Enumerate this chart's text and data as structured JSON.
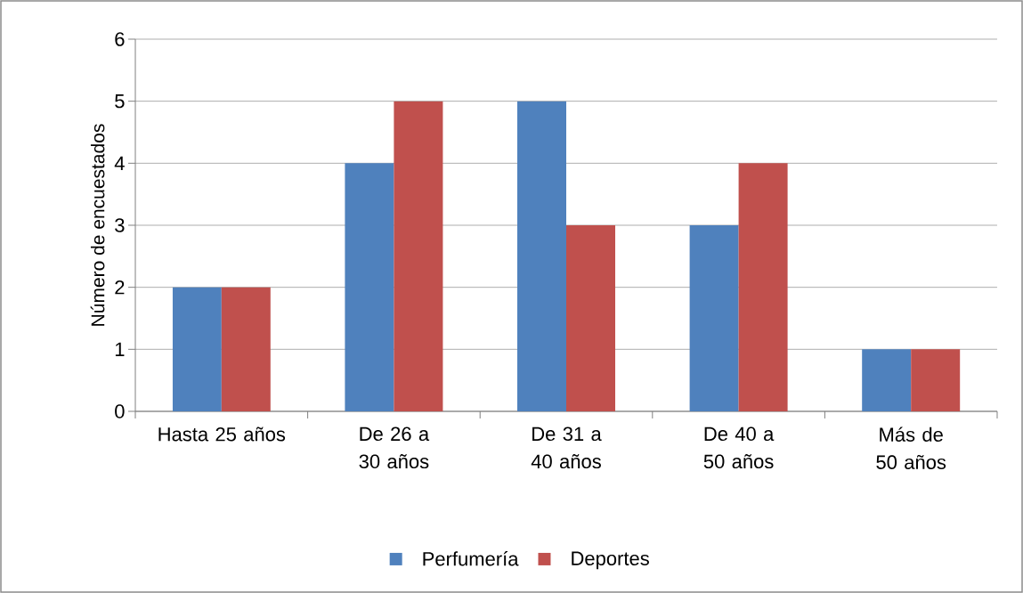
{
  "chart_data": {
    "type": "bar",
    "ylabel": "Número de encuestados",
    "categories": [
      "Hasta 25 años",
      "De 26 a 30 años",
      "De 31 a 40 años",
      "De 40 a 50 años",
      "Más de 50 años"
    ],
    "series": [
      {
        "name": "Perfumería",
        "color": "#4f81bd",
        "values": [
          2,
          4,
          5,
          3,
          1
        ]
      },
      {
        "name": "Deportes",
        "color": "#c0504d",
        "values": [
          2,
          5,
          3,
          4,
          1
        ]
      }
    ],
    "ylim": [
      0,
      6
    ],
    "yticks": [
      0,
      1,
      2,
      3,
      4,
      5,
      6
    ],
    "grid": "y",
    "legend": "bottom"
  }
}
